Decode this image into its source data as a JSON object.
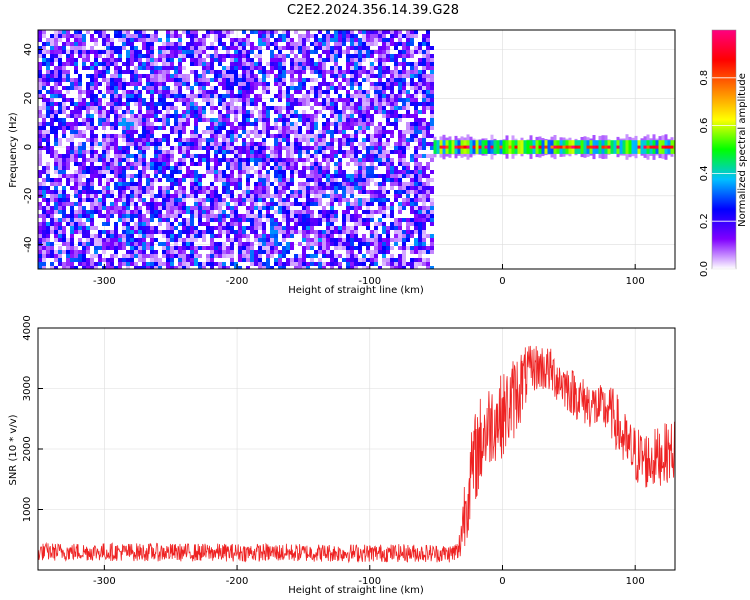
{
  "title": "C2E2.2024.356.14.39.G28",
  "chart_data": [
    {
      "type": "heatmap",
      "xlabel": "Height of straight line (km)",
      "ylabel": "Frequency (Hz)",
      "xlim": [
        -350,
        130
      ],
      "ylim": [
        -50,
        48
      ],
      "x_ticks": [
        -300,
        -200,
        -100,
        0,
        100
      ],
      "x_tick_labels": [
        "-300",
        "-200",
        "-100",
        "0",
        "100"
      ],
      "y_ticks": [
        -40,
        -20,
        0,
        20,
        40
      ],
      "y_tick_labels": [
        "-40",
        "-20",
        "0",
        "20",
        "40"
      ],
      "noise_region_x": [
        -350,
        -52
      ],
      "signal_band": {
        "x": [
          -52,
          130
        ],
        "center_freq": 0,
        "width_hz": 4
      },
      "colorbar": {
        "label": "Normalized spectral amplitude",
        "range": [
          0,
          1
        ],
        "ticks": [
          0.0,
          0.2,
          0.4,
          0.6,
          0.8
        ],
        "tick_labels": [
          "0.0",
          "0.2",
          "0.4",
          "0.6",
          "0.8"
        ],
        "colormap": [
          "#ffffff",
          "#8000ff",
          "#0000ff",
          "#00c0ff",
          "#00ff00",
          "#ffff00",
          "#ff8000",
          "#ff0000",
          "#ff0080"
        ]
      },
      "grid": true
    },
    {
      "type": "line",
      "xlabel": "Height of straight line (km)",
      "ylabel": "SNR (10 * v/v)",
      "xlim": [
        -350,
        130
      ],
      "ylim": [
        0,
        4000
      ],
      "x_ticks": [
        -300,
        -200,
        -100,
        0,
        100
      ],
      "x_tick_labels": [
        "-300",
        "-200",
        "-100",
        "0",
        "100"
      ],
      "y_ticks": [
        1000,
        2000,
        3000,
        4000
      ],
      "y_tick_labels": [
        "1000",
        "2000",
        "3000",
        "4000"
      ],
      "series_color": "#ee2222",
      "x": [
        -350,
        -300,
        -250,
        -200,
        -150,
        -100,
        -60,
        -40,
        -33,
        -30,
        -25,
        -20,
        -15,
        -10,
        -5,
        0,
        5,
        10,
        15,
        20,
        25,
        30,
        35,
        40,
        45,
        50,
        55,
        60,
        65,
        70,
        75,
        80,
        85,
        90,
        95,
        100,
        105,
        110,
        115,
        120,
        125,
        130
      ],
      "y": [
        300,
        300,
        290,
        290,
        285,
        280,
        280,
        270,
        300,
        800,
        1400,
        1900,
        2200,
        2400,
        2500,
        2550,
        2700,
        2900,
        3100,
        3300,
        3350,
        3350,
        3300,
        3200,
        3100,
        3000,
        2900,
        2800,
        2750,
        2700,
        2650,
        2650,
        2500,
        2200,
        2000,
        1900,
        1850,
        1800,
        1850,
        1900,
        1950,
        2000
      ],
      "noise_amplitude": [
        150,
        150,
        150,
        150,
        150,
        150,
        150,
        150,
        200,
        600,
        700,
        800,
        800,
        700,
        700,
        700,
        700,
        700,
        600,
        400,
        400,
        400,
        400,
        400,
        400,
        400,
        400,
        400,
        400,
        400,
        400,
        400,
        500,
        500,
        500,
        500,
        500,
        500,
        500,
        500,
        500,
        500
      ],
      "grid": true
    }
  ]
}
